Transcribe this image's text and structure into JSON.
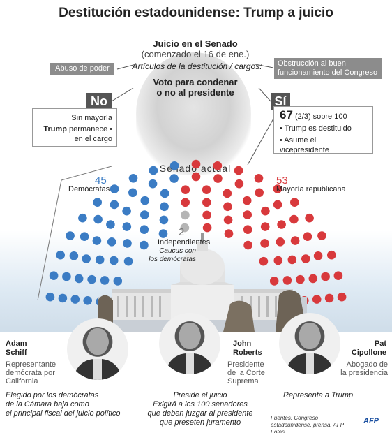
{
  "title": "Destitución estadounidense: Trump a juicio",
  "trial": {
    "heading": "Juicio en el Senado",
    "started": "(comenzado el 16 de ene.)",
    "articles": "Artículos de la destitución / cargos:",
    "charge_left": "Abuso de poder",
    "charge_right": "Obstrucción al buen funcionamiento del Congreso",
    "question_line1": "Voto para condenar",
    "question_line2": "o no al presidente"
  },
  "outcomes": {
    "no_label": "No",
    "no_line1": "Sin mayoría",
    "no_name": "Trump",
    "no_line2": "permanece •",
    "no_line3": "en el cargo",
    "si_label": "Sí",
    "si_count": "67",
    "si_rule": "(2/3) sobre 100",
    "si_item1": "• Trump es destituido",
    "si_item2": "• Asume el vicepresidente"
  },
  "senate": {
    "title": "Senado actual",
    "dem_count": "45",
    "dem_label": "Demócratas",
    "rep_count": "53",
    "rep_label": "Mayoría republicana",
    "ind_count": "2",
    "ind_label": "Independientes",
    "caucus_line1": "Caucus con",
    "caucus_line2": "los demócratas",
    "colors": {
      "dem": "#3b7cc4",
      "rep": "#d8393c",
      "ind": "#b5b5b5"
    }
  },
  "people": {
    "schiff": {
      "first": "Adam",
      "last": "Schiff",
      "role1": "Representante",
      "role2": "demócrata por",
      "role3": "California",
      "desc1": "Elegido por los demócratas",
      "desc2": "de la Cámara baja como",
      "desc3": "el principal fiscal del juicio político"
    },
    "roberts": {
      "first": "John",
      "last": "Roberts",
      "role1": "Presidente",
      "role2": "de la Corte",
      "role3": "Suprema",
      "desc1": "Preside el juicio",
      "desc2": "Exigirá a los 100 senadores",
      "desc3": "que deben juzgar al presidente",
      "desc4": "que preseten juramento"
    },
    "cipollone": {
      "first": "Pat",
      "last": "Cipollone",
      "role1": "Abogado de",
      "role2": "la presidencia",
      "desc1": "Representa a Trump"
    }
  },
  "sources": "Fuentes: Congreso estadounidense, prensa, AFP Fotos",
  "logo": "AFP"
}
